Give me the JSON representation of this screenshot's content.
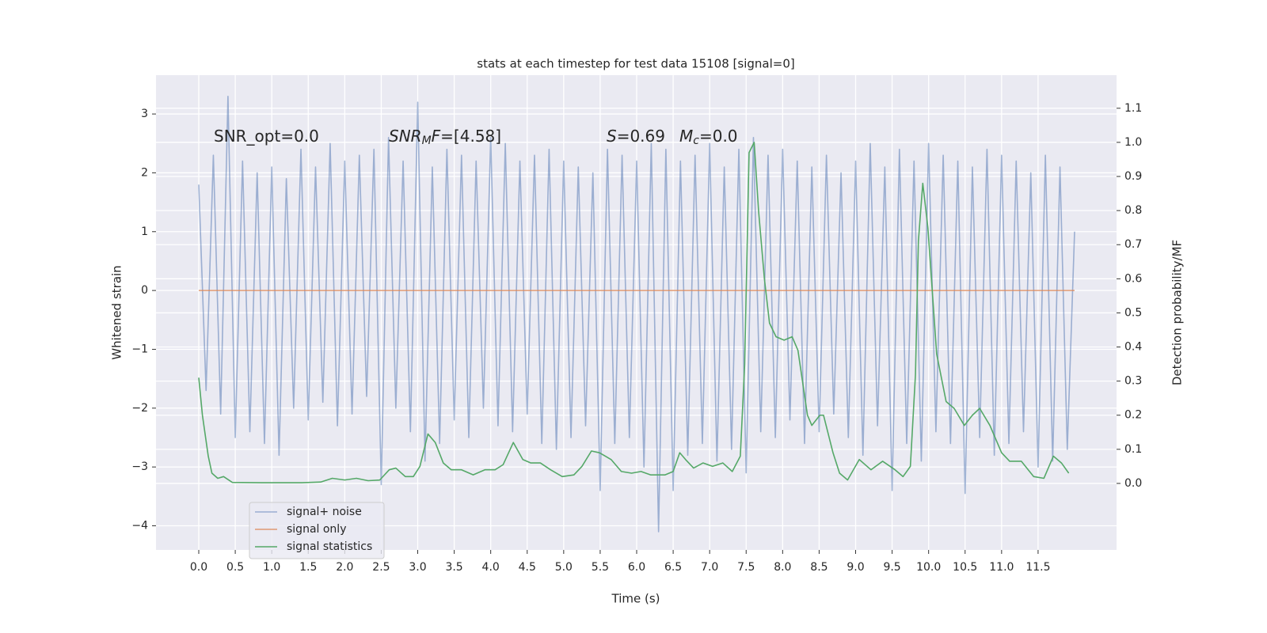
{
  "chart_data": {
    "type": "line",
    "title": "stats at each timestep for test data 15108 [signal=0]",
    "xlabel": "Time (s)",
    "ylabel": "Whitened strain",
    "y2label": "Detection probability/MF",
    "xlim": [
      -0.586,
      12.575
    ],
    "ylim": [
      -4.41,
      3.66
    ],
    "y2lim": [
      -0.195,
      1.197
    ],
    "xticks": [
      {
        "value": 0,
        "label": "0.0"
      },
      0.5,
      {
        "value": 1,
        "label": "1.0"
      },
      1.5,
      {
        "value": 2,
        "label": "2.0"
      },
      2.5,
      {
        "value": 3,
        "label": "3.0"
      },
      3.5,
      {
        "value": 4,
        "label": "4.0"
      },
      4.5,
      {
        "value": 5,
        "label": "5.0"
      },
      5.5,
      {
        "value": 6,
        "label": "6.0"
      },
      6.5,
      {
        "value": 7,
        "label": "7.0"
      },
      7.5,
      {
        "value": 8,
        "label": "8.0"
      },
      8.5,
      {
        "value": 9,
        "label": "9.0"
      },
      9.5,
      {
        "value": 10,
        "label": "10.0"
      },
      10.5,
      {
        "value": 11,
        "label": "11.0"
      },
      11.5
    ],
    "yticks": [
      {
        "value": -4,
        "label": "−4"
      },
      {
        "value": -3,
        "label": "−3"
      },
      {
        "value": -2,
        "label": "−2"
      },
      {
        "value": -1,
        "label": "−1"
      },
      0,
      1,
      2,
      3
    ],
    "y2ticks": [
      {
        "value": 0,
        "label": "0.0"
      },
      0.1,
      0.2,
      0.3,
      0.4,
      0.5,
      0.6,
      0.7,
      0.8,
      0.9,
      {
        "value": 1,
        "label": "1.0"
      },
      1.1
    ],
    "grid": true,
    "legend": "lower left",
    "annotations": [
      {
        "segments": [
          {
            "text": "SNR_opt=0.0",
            "style": "normal"
          }
        ]
      },
      {
        "segments": [
          {
            "text": "SNR",
            "style": "italic"
          },
          {
            "text": "M",
            "style": "italic-sub"
          },
          {
            "text": "F",
            "style": "italic"
          },
          {
            "text": "=[4.58]",
            "style": "normal"
          }
        ]
      },
      {
        "segments": [
          {
            "text": "S",
            "style": "italic"
          },
          {
            "text": "=0.69",
            "style": "normal"
          }
        ]
      },
      {
        "segments": [
          {
            "text": "M",
            "style": "italic"
          },
          {
            "text": "c",
            "style": "italic-sub"
          },
          {
            "text": "=0.0",
            "style": "normal"
          }
        ]
      }
    ],
    "series": [
      {
        "name": "signal+ noise",
        "color": "#4c72b0",
        "opacity": 0.5,
        "x": [
          0,
          0.1,
          0.2,
          0.3,
          0.4,
          0.5,
          0.6,
          0.7,
          0.8,
          0.9,
          1,
          1.1,
          1.2,
          1.3,
          1.4,
          1.5,
          1.6,
          1.7,
          1.8,
          1.9,
          2,
          2.1,
          2.2,
          2.3,
          2.4,
          2.5,
          2.6,
          2.7,
          2.8,
          2.9,
          3,
          3.1,
          3.2,
          3.3,
          3.4,
          3.5,
          3.6,
          3.7,
          3.8,
          3.9,
          4,
          4.1,
          4.2,
          4.3,
          4.4,
          4.5,
          4.6,
          4.7,
          4.8,
          4.9,
          5,
          5.1,
          5.2,
          5.3,
          5.4,
          5.5,
          5.6,
          5.7,
          5.8,
          5.9,
          6,
          6.1,
          6.2,
          6.3,
          6.4,
          6.5,
          6.6,
          6.7,
          6.8,
          6.9,
          7,
          7.1,
          7.2,
          7.3,
          7.4,
          7.5,
          7.6,
          7.7,
          7.8,
          7.9,
          8,
          8.1,
          8.2,
          8.3,
          8.4,
          8.5,
          8.6,
          8.7,
          8.8,
          8.9,
          9,
          9.1,
          9.2,
          9.3,
          9.4,
          9.5,
          9.6,
          9.7,
          9.8,
          9.9,
          10,
          10.1,
          10.2,
          10.3,
          10.4,
          10.5,
          10.6,
          10.7,
          10.8,
          10.9,
          11,
          11.1,
          11.2,
          11.3,
          11.4,
          11.5,
          11.6,
          11.7,
          11.8,
          11.9,
          12
        ],
        "values": [
          1.8,
          -1.7,
          2.3,
          -2.1,
          3.3,
          -2.5,
          2.2,
          -2.4,
          2.0,
          -2.6,
          2.1,
          -2.8,
          1.9,
          -2.0,
          2.4,
          -2.2,
          2.1,
          -1.9,
          2.5,
          -2.3,
          2.2,
          -2.1,
          2.3,
          -1.8,
          2.4,
          -3.3,
          2.6,
          -2.0,
          2.2,
          -2.4,
          3.2,
          -2.9,
          2.1,
          -2.6,
          2.4,
          -2.2,
          2.3,
          -2.5,
          2.2,
          -2.0,
          2.6,
          -2.3,
          2.5,
          -2.4,
          2.2,
          -2.1,
          2.3,
          -2.6,
          2.4,
          -2.7,
          2.2,
          -2.5,
          2.1,
          -2.3,
          2.0,
          -3.4,
          2.4,
          -2.6,
          2.3,
          -2.5,
          2.2,
          -3.0,
          2.5,
          -4.1,
          2.4,
          -3.4,
          2.2,
          -2.8,
          2.3,
          -2.6,
          2.5,
          -2.9,
          2.1,
          -2.7,
          2.4,
          -3.1,
          2.6,
          -2.4,
          2.3,
          -2.5,
          2.4,
          -2.2,
          2.2,
          -2.6,
          2.1,
          -2.4,
          2.3,
          -2.1,
          2.0,
          -2.5,
          2.2,
          -2.8,
          2.5,
          -2.3,
          2.1,
          -3.4,
          2.4,
          -2.6,
          2.2,
          -2.9,
          2.5,
          -2.4,
          2.3,
          -2.6,
          2.2,
          -3.45,
          2.1,
          -2.5,
          2.4,
          -2.8,
          2.3,
          -2.6,
          2.2,
          -2.4,
          2.0,
          -3.0,
          2.3,
          -2.9,
          2.1,
          -2.7,
          1.0
        ]
      },
      {
        "name": "signal only",
        "color": "#dd8452",
        "opacity": 0.8,
        "x": [
          0,
          12
        ],
        "values": [
          0,
          0
        ]
      },
      {
        "name": "signal statistics",
        "color": "#55a868",
        "opacity": 1,
        "axis": "y2",
        "x": [
          0,
          0.05,
          0.13,
          0.18,
          0.26,
          0.34,
          0.46,
          0.86,
          1.4,
          1.67,
          1.83,
          2.0,
          2.16,
          2.32,
          2.48,
          2.61,
          2.7,
          2.83,
          2.94,
          3.03,
          3.14,
          3.24,
          3.35,
          3.46,
          3.6,
          3.76,
          3.92,
          4.06,
          4.17,
          4.31,
          4.44,
          4.55,
          4.68,
          4.82,
          4.98,
          5.14,
          5.25,
          5.38,
          5.49,
          5.65,
          5.79,
          5.93,
          6.06,
          6.19,
          6.39,
          6.5,
          6.59,
          6.67,
          6.78,
          6.91,
          7.04,
          7.18,
          7.31,
          7.42,
          7.48,
          7.54,
          7.61,
          7.67,
          7.75,
          7.82,
          7.91,
          8.02,
          8.13,
          8.21,
          8.34,
          8.4,
          8.51,
          8.56,
          8.69,
          8.78,
          8.89,
          9.05,
          9.21,
          9.37,
          9.54,
          9.65,
          9.75,
          9.82,
          9.86,
          9.92,
          9.99,
          10.11,
          10.24,
          10.35,
          10.49,
          10.6,
          10.7,
          10.84,
          11.0,
          11.11,
          11.27,
          11.44,
          11.58,
          11.71,
          11.82,
          11.92
        ],
        "values": [
          0.31,
          0.2,
          0.08,
          0.03,
          0.015,
          0.02,
          0.003,
          0.002,
          0.002,
          0.004,
          0.015,
          0.01,
          0.015,
          0.008,
          0.01,
          0.04,
          0.045,
          0.02,
          0.02,
          0.05,
          0.145,
          0.12,
          0.06,
          0.04,
          0.04,
          0.025,
          0.04,
          0.04,
          0.055,
          0.12,
          0.07,
          0.06,
          0.06,
          0.04,
          0.02,
          0.025,
          0.05,
          0.095,
          0.09,
          0.07,
          0.035,
          0.03,
          0.035,
          0.025,
          0.025,
          0.035,
          0.09,
          0.07,
          0.045,
          0.06,
          0.05,
          0.06,
          0.035,
          0.08,
          0.35,
          0.97,
          1.0,
          0.8,
          0.6,
          0.47,
          0.43,
          0.42,
          0.43,
          0.39,
          0.2,
          0.17,
          0.2,
          0.2,
          0.09,
          0.03,
          0.01,
          0.07,
          0.04,
          0.065,
          0.04,
          0.02,
          0.05,
          0.32,
          0.71,
          0.88,
          0.75,
          0.38,
          0.24,
          0.22,
          0.17,
          0.2,
          0.22,
          0.17,
          0.09,
          0.065,
          0.065,
          0.02,
          0.015,
          0.08,
          0.06,
          0.03
        ]
      }
    ]
  }
}
